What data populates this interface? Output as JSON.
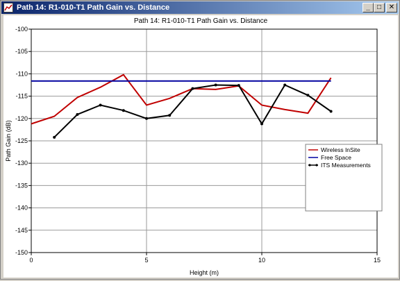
{
  "window": {
    "title": "Path 14: R1-010-T1 Path Gain vs. Distance",
    "controls": {
      "minimize": "_",
      "maximize": "□",
      "close": "✕"
    },
    "icon": "chart-app-icon"
  },
  "chart_data": {
    "type": "line",
    "title": "Path 14: R1-010-T1 Path Gain vs. Distance",
    "xlabel": "Height (m)",
    "ylabel": "Path Gain (dB)",
    "xlim": [
      0,
      15
    ],
    "ylim": [
      -150,
      -100
    ],
    "xticks": [
      0,
      5,
      10,
      15
    ],
    "yticks": [
      -100,
      -105,
      -110,
      -115,
      -120,
      -125,
      -130,
      -135,
      -140,
      -145,
      -150
    ],
    "grid": true,
    "legend_position": "right",
    "series": [
      {
        "name": "Wireless InSite",
        "color": "#c00000",
        "markers": false,
        "x": [
          0,
          1,
          2,
          3,
          4,
          5,
          6,
          7,
          8,
          9,
          10,
          11,
          12,
          13
        ],
        "y": [
          -121.2,
          -119.5,
          -115.3,
          -113.0,
          -110.2,
          -117.0,
          -115.5,
          -113.3,
          -113.5,
          -112.7,
          -117.0,
          -118.0,
          -118.8,
          -110.9
        ]
      },
      {
        "name": "Free Space",
        "color": "#0000a0",
        "markers": false,
        "x": [
          0,
          13
        ],
        "y": [
          -111.6,
          -111.6
        ]
      },
      {
        "name": "ITS Measurements",
        "color": "#000000",
        "markers": true,
        "x": [
          1,
          2,
          3,
          4,
          5,
          6,
          7,
          8,
          9,
          10,
          11,
          12,
          13
        ],
        "y": [
          -124.2,
          -119.1,
          -117.0,
          -118.2,
          -120.0,
          -119.3,
          -113.3,
          -112.5,
          -112.6,
          -121.2,
          -112.5,
          -114.8,
          -118.4
        ]
      }
    ]
  }
}
